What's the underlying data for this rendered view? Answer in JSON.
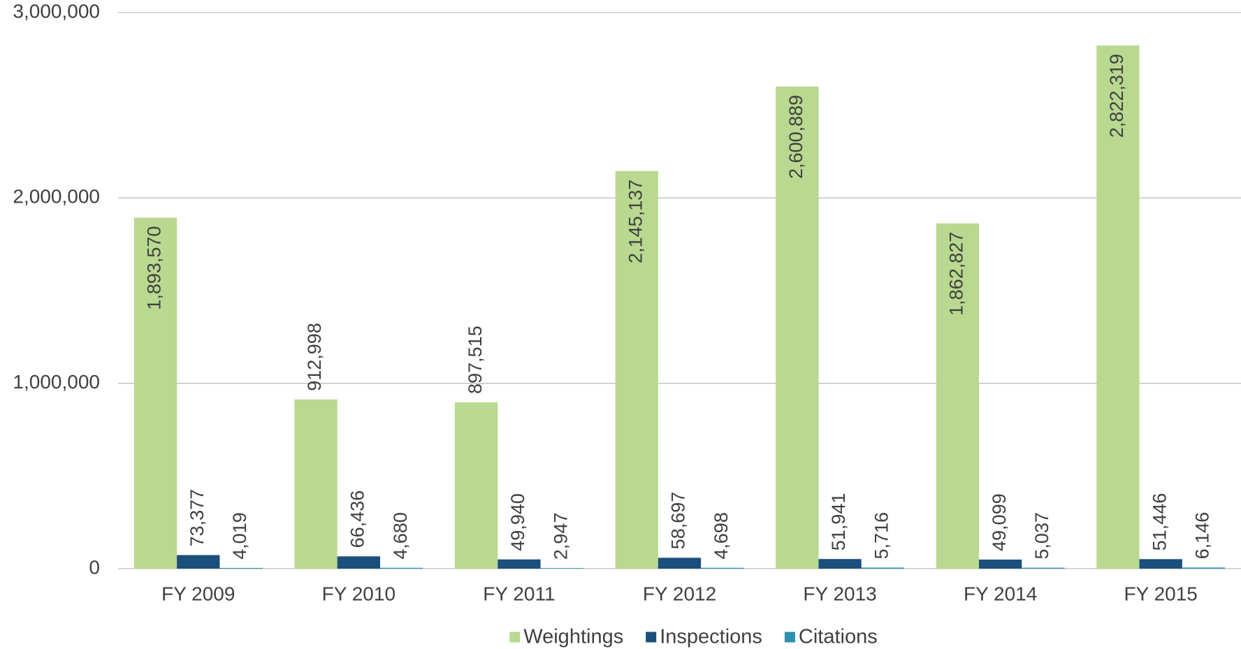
{
  "chart_data": {
    "type": "bar",
    "categories": [
      "FY 2009",
      "FY 2010",
      "FY 2011",
      "FY 2012",
      "FY 2013",
      "FY 2014",
      "FY 2015"
    ],
    "series": [
      {
        "name": "Weightings",
        "color": "#b8d98f",
        "values": [
          1893570,
          912998,
          897515,
          2145137,
          2600889,
          1862827,
          2822319
        ],
        "value_labels": [
          "1,893,570",
          "912,998",
          "897,515",
          "2,145,137",
          "2,600,889",
          "1,862,827",
          "2,822,319"
        ]
      },
      {
        "name": "Inspections",
        "color": "#1b4f7c",
        "values": [
          73377,
          66436,
          49940,
          58697,
          51941,
          49099,
          51446
        ],
        "value_labels": [
          "73,377",
          "66,436",
          "49,940",
          "58,697",
          "51,941",
          "49,099",
          "51,446"
        ]
      },
      {
        "name": "Citations",
        "color": "#2f8fb1",
        "values": [
          4019,
          4680,
          2947,
          4698,
          5716,
          5037,
          6146
        ],
        "value_labels": [
          "4,019",
          "4,680",
          "2,947",
          "4,698",
          "5,716",
          "5,037",
          "6,146"
        ]
      }
    ],
    "ylim": [
      0,
      3000000
    ],
    "yticks": [
      0,
      {
        "value": 1000000,
        "label": "1,000,000"
      },
      {
        "value": 2000000,
        "label": "2,000,000"
      },
      {
        "value": 3000000,
        "label": "3,000,000"
      }
    ],
    "grid": true,
    "legend": "bottom"
  }
}
